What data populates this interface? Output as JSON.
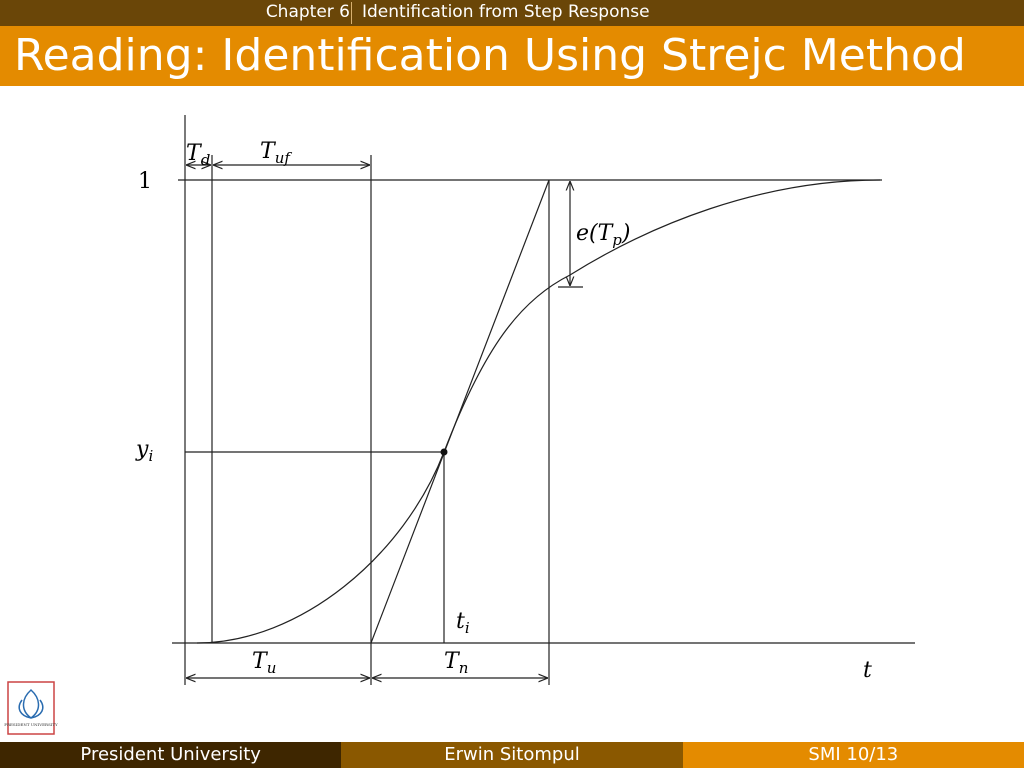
{
  "header": {
    "chapter": "Chapter 6",
    "section": "Identification from Step Response",
    "title": "Reading: Identification Using Strejc Method"
  },
  "diagram": {
    "labels": {
      "td": {
        "main": "T",
        "sub": "d"
      },
      "tuf": {
        "main": "T",
        "sub": "uf"
      },
      "one": "1",
      "etp": {
        "pre": "e(",
        "main": "T",
        "sub": "p",
        "post": ")"
      },
      "yi": {
        "main": "y",
        "sub": "i"
      },
      "ti": {
        "main": "t",
        "sub": "i"
      },
      "tu": {
        "main": "T",
        "sub": "u"
      },
      "tn": {
        "main": "T",
        "sub": "n"
      },
      "t": "t"
    }
  },
  "logo": {
    "text": "PRESIDENT UNIVERSITY"
  },
  "footer": {
    "left": "President University",
    "center": "Erwin Sitompul",
    "right": "SMI 10/13"
  }
}
